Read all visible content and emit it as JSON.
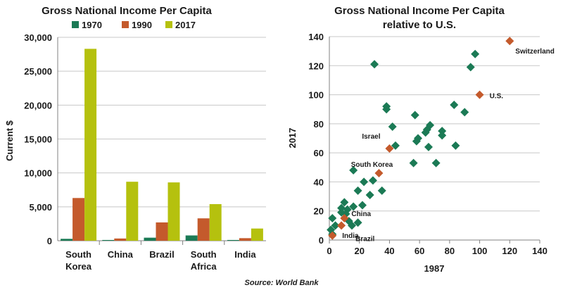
{
  "colors": {
    "s1970": "#1b7a55",
    "s1990": "#c45a2c",
    "s2017": "#b5c10e",
    "scatter_other": "#1b7a55",
    "scatter_highlight": "#c45a2c",
    "grid": "#c8c8c8",
    "axis": "#808080",
    "text": "#1a1a1a"
  },
  "source": "Source: World Bank",
  "chart_data": [
    {
      "type": "bar",
      "title": "Gross National Income Per Capita",
      "ylabel": "Current $",
      "xlabel": "",
      "categories": [
        "South Korea",
        "China",
        "Brazil",
        "South Africa",
        "India"
      ],
      "category_lines": [
        [
          "South",
          "Korea"
        ],
        [
          "China"
        ],
        [
          "Brazil"
        ],
        [
          "South",
          "Africa"
        ],
        [
          "India"
        ]
      ],
      "series": [
        {
          "name": "1970",
          "values": [
            280,
            110,
            450,
            780,
            110
          ]
        },
        {
          "name": "1990",
          "values": [
            6300,
            330,
            2700,
            3300,
            380
          ]
        },
        {
          "name": "2017",
          "values": [
            28300,
            8700,
            8600,
            5400,
            1800
          ]
        }
      ],
      "ylim": [
        0,
        30000
      ],
      "yticks": [
        0,
        5000,
        10000,
        15000,
        20000,
        25000,
        30000
      ],
      "ytick_labels": [
        "0",
        "5,000",
        "10,000",
        "15,000",
        "20,000",
        "25,000",
        "30,000"
      ],
      "grid": true,
      "legend": "top"
    },
    {
      "type": "scatter",
      "title": "Gross National Income Per Capita",
      "subtitle": "relative to U.S.",
      "xlabel": "1987",
      "ylabel": "2017",
      "xlim": [
        0,
        140
      ],
      "ylim": [
        0,
        140
      ],
      "xticks": [
        0,
        20,
        40,
        60,
        80,
        100,
        120,
        140
      ],
      "yticks": [
        0,
        20,
        40,
        60,
        80,
        100,
        120,
        140
      ],
      "grid": true,
      "highlighted": [
        {
          "label": "Switzerland",
          "x": 120,
          "y": 137
        },
        {
          "label": "U.S.",
          "x": 100,
          "y": 100
        },
        {
          "label": "Israel",
          "x": 40,
          "y": 63
        },
        {
          "label": "South Korea",
          "x": 33,
          "y": 46
        },
        {
          "label": "China",
          "x": 10,
          "y": 15
        },
        {
          "label": "Brazil",
          "x": 8,
          "y": 10
        },
        {
          "label": "India",
          "x": 2,
          "y": 3
        }
      ],
      "others": [
        [
          30,
          121
        ],
        [
          97,
          128
        ],
        [
          94,
          119
        ],
        [
          38,
          92
        ],
        [
          38,
          90
        ],
        [
          83,
          93
        ],
        [
          90,
          88
        ],
        [
          57,
          86
        ],
        [
          42,
          78
        ],
        [
          67,
          79
        ],
        [
          65,
          76
        ],
        [
          75,
          75
        ],
        [
          64,
          74
        ],
        [
          75,
          72
        ],
        [
          59,
          70
        ],
        [
          58,
          68
        ],
        [
          44,
          65
        ],
        [
          66,
          64
        ],
        [
          84,
          65
        ],
        [
          71,
          53
        ],
        [
          56,
          53
        ],
        [
          16,
          48
        ],
        [
          23,
          40
        ],
        [
          29,
          41
        ],
        [
          35,
          34
        ],
        [
          19,
          34
        ],
        [
          27,
          31
        ],
        [
          22,
          24
        ],
        [
          10,
          26
        ],
        [
          8,
          22
        ],
        [
          12,
          21
        ],
        [
          16,
          23
        ],
        [
          19,
          12
        ],
        [
          11,
          18
        ],
        [
          8,
          19
        ],
        [
          15,
          10
        ],
        [
          2,
          15
        ],
        [
          1,
          7
        ],
        [
          4,
          10
        ],
        [
          2,
          4
        ],
        [
          13,
          13
        ]
      ]
    }
  ]
}
